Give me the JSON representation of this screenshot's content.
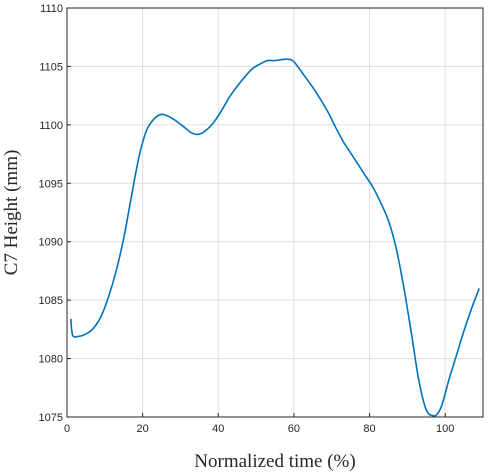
{
  "chart_data": {
    "type": "line",
    "title": "",
    "xlabel": "Normalized time (%)",
    "ylabel": "C7 Height (mm)",
    "xlim": [
      0,
      110
    ],
    "ylim": [
      1075,
      1110
    ],
    "x_ticks": [
      0,
      20,
      40,
      60,
      80,
      100
    ],
    "y_ticks": [
      1075,
      1080,
      1085,
      1090,
      1095,
      1100,
      1105,
      1110
    ],
    "grid": true,
    "line_color": "#0072BD",
    "series": [
      {
        "x": [
          1,
          1.5,
          3,
          5,
          7,
          9,
          11,
          13,
          15,
          17,
          19,
          21,
          23,
          25,
          27,
          29,
          31,
          33,
          35,
          37,
          39,
          41,
          43,
          45,
          47,
          49,
          51,
          53,
          55,
          57,
          59,
          60,
          61,
          63,
          65,
          67,
          69,
          71,
          73,
          75,
          77,
          79,
          81,
          83,
          85,
          87,
          89,
          91,
          93,
          95,
          97,
          98,
          99,
          100,
          101,
          103,
          105,
          107,
          109
        ],
        "y": [
          1083.4,
          1082.0,
          1081.9,
          1082.1,
          1082.6,
          1083.6,
          1085.3,
          1087.5,
          1090.3,
          1093.8,
          1097.2,
          1099.5,
          1100.5,
          1100.9,
          1100.7,
          1100.3,
          1099.8,
          1099.3,
          1099.2,
          1099.6,
          1100.3,
          1101.3,
          1102.4,
          1103.3,
          1104.1,
          1104.8,
          1105.2,
          1105.5,
          1105.5,
          1105.6,
          1105.6,
          1105.4,
          1105.0,
          1104.1,
          1103.2,
          1102.2,
          1101.1,
          1099.8,
          1098.6,
          1097.6,
          1096.6,
          1095.6,
          1094.6,
          1093.3,
          1091.8,
          1089.5,
          1086.2,
          1082.3,
          1078.2,
          1075.6,
          1075.1,
          1075.3,
          1075.9,
          1077.0,
          1078.2,
          1080.3,
          1082.4,
          1084.3,
          1086.0
        ]
      }
    ]
  }
}
